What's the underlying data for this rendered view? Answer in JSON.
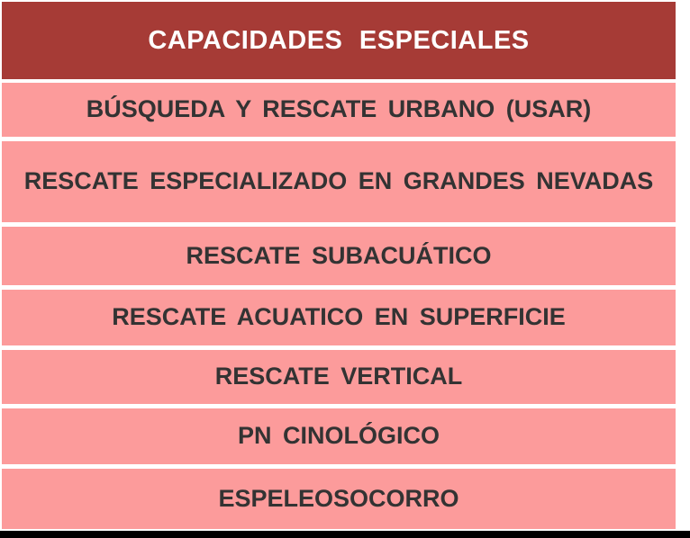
{
  "colors": {
    "header-bg": "#A63B36",
    "header-text": "#FFFFFF",
    "row-bg": "#FC9B9B",
    "row-text": "#333333",
    "separator": "#FFFFFF",
    "bottom-bar": "#000000"
  },
  "table": {
    "title": "CAPACIDADES ESPECIALES",
    "rows": [
      "BÚSQUEDA Y RESCATE URBANO (USAR)",
      "RESCATE ESPECIALIZADO EN GRANDES NEVADAS",
      "RESCATE SUBACUÁTICO",
      "RESCATE ACUATICO EN SUPERFICIE",
      "RESCATE VERTICAL",
      "PN CINOLÓGICO",
      "ESPELEOSOCORRO"
    ]
  }
}
